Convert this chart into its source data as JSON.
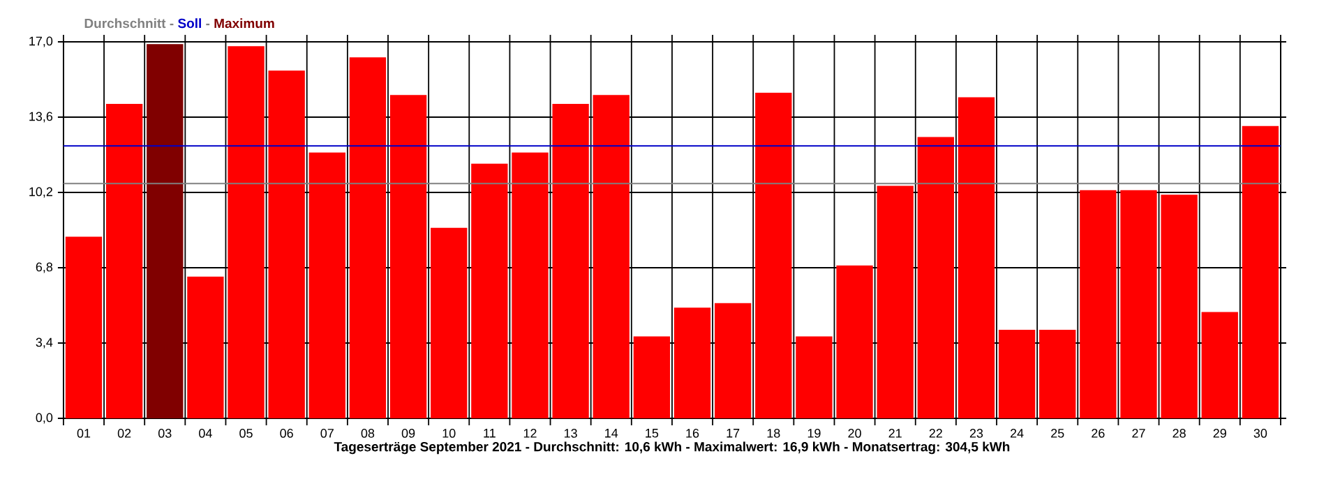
{
  "chart_data": {
    "type": "bar",
    "xlabel": "Tageserträge September 2021 - Durchschnitt: 10,6 kWh - Maximalwert: 16,9 kWh - Monatsertrag: 304,5 kWh",
    "categories": [
      "01",
      "02",
      "03",
      "04",
      "05",
      "06",
      "07",
      "08",
      "09",
      "10",
      "11",
      "12",
      "13",
      "14",
      "15",
      "16",
      "17",
      "18",
      "19",
      "20",
      "21",
      "22",
      "23",
      "24",
      "25",
      "26",
      "27",
      "28",
      "29",
      "30"
    ],
    "values": [
      8.2,
      14.2,
      16.9,
      6.4,
      16.8,
      15.7,
      12.0,
      16.3,
      14.6,
      8.6,
      11.5,
      12.0,
      14.2,
      14.6,
      3.7,
      5.0,
      5.2,
      14.7,
      3.7,
      6.9,
      10.5,
      12.7,
      14.5,
      4.0,
      4.0,
      10.3,
      10.3,
      10.1,
      4.8,
      13.2
    ],
    "colors": [
      "#ff0000",
      "#ff0000",
      "#800000",
      "#ff0000",
      "#ff0000",
      "#ff0000",
      "#ff0000",
      "#ff0000",
      "#ff0000",
      "#ff0000",
      "#ff0000",
      "#ff0000",
      "#ff0000",
      "#ff0000",
      "#ff0000",
      "#ff0000",
      "#ff0000",
      "#ff0000",
      "#ff0000",
      "#ff0000",
      "#ff0000",
      "#ff0000",
      "#ff0000",
      "#ff0000",
      "#ff0000",
      "#ff0000",
      "#ff0000",
      "#ff0000",
      "#ff0000",
      "#ff0000"
    ],
    "ylim": [
      0,
      17
    ],
    "yticks": [
      {
        "value": 0,
        "label": "0,0"
      },
      {
        "value": 3.4,
        "label": "3,4"
      },
      {
        "value": 6.8,
        "label": "6,8"
      },
      {
        "value": 10.2,
        "label": "10,2"
      },
      {
        "value": 13.6,
        "label": "13,6"
      },
      {
        "value": 17,
        "label": "17,0"
      }
    ],
    "grid": true,
    "ref_lines": [
      {
        "axis": "y",
        "value": 10.6,
        "label": "Durchschnitt",
        "color": "#808080"
      },
      {
        "axis": "y",
        "value": 12.3,
        "label": "Soll",
        "color": "#0000c8"
      }
    ],
    "annotations": [
      "-",
      "-",
      "Maximum"
    ]
  }
}
